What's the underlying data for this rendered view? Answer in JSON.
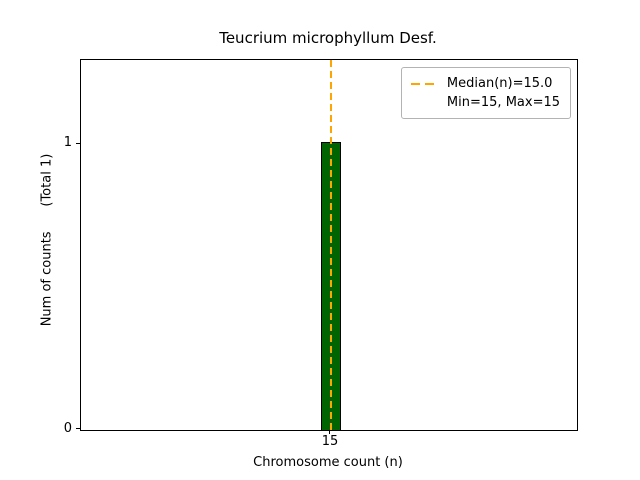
{
  "figure": {
    "background": "#ffffff"
  },
  "chart_data": {
    "type": "bar",
    "title": "Teucrium microphyllum Desf.",
    "xlabel": "Chromosome count (n)",
    "ylabel": "Num of counts      (Total 1)",
    "categories": [
      15
    ],
    "values": [
      1
    ],
    "total_counts": 1,
    "xtick_labels": [
      "15"
    ],
    "ytick_labels": {
      "zero": "0",
      "one": "1"
    },
    "ylim": [
      0,
      1.29
    ],
    "grid": false,
    "bar_color": "#006400",
    "bar_edge_color": "#000000",
    "median": 15.0,
    "min": 15,
    "max": 15,
    "median_line_color": "#FFA500",
    "median_line_style": "dashed",
    "legend": {
      "position": "upper right",
      "entries": [
        {
          "label": "Median(n)=15.0",
          "sample": "dashed-orange-line"
        },
        {
          "label": "Min=15, Max=15",
          "sample": "none"
        }
      ]
    }
  }
}
